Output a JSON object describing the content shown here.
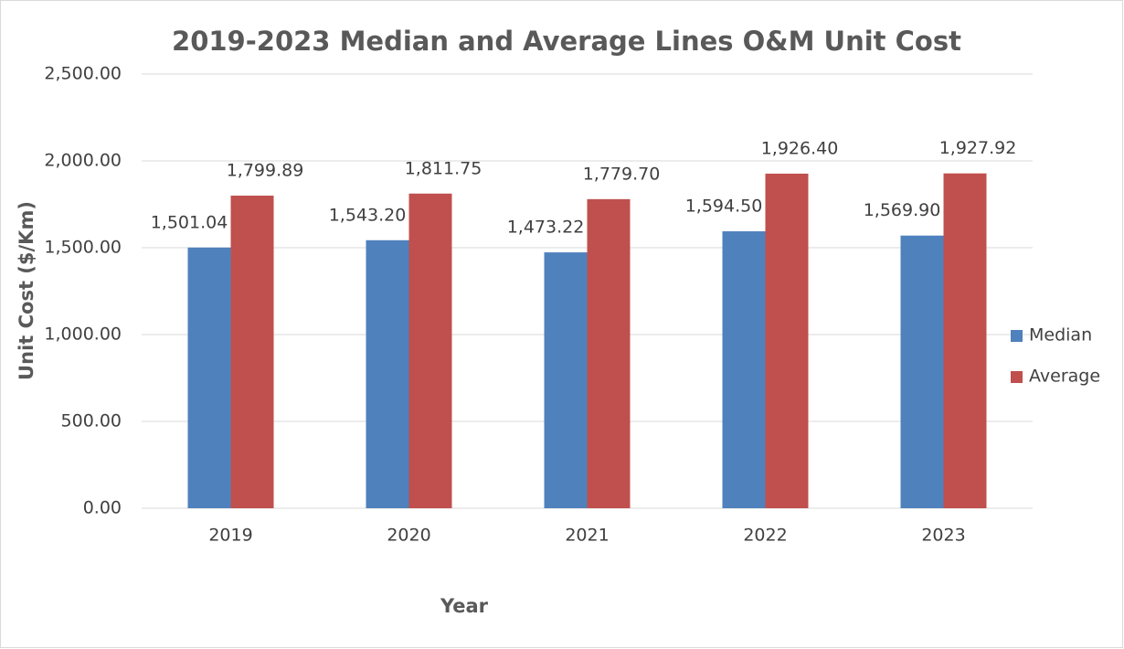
{
  "chart_data": {
    "type": "bar",
    "title": "2019-2023 Median and Average Lines O&M Unit Cost",
    "x_label": "Year",
    "y_label": "Unit Cost ($/Km)",
    "categories": [
      "2019",
      "2020",
      "2021",
      "2022",
      "2023"
    ],
    "series": [
      {
        "name": "Median",
        "color": "#4f81bd",
        "values": [
          1501.04,
          1543.2,
          1473.22,
          1594.5,
          1569.9
        ],
        "value_labels": [
          "1,501.04",
          "1,543.20",
          "1,473.22",
          "1,594.50",
          "1,569.90"
        ]
      },
      {
        "name": "Average",
        "color": "#c0504d",
        "values": [
          1799.89,
          1811.75,
          1779.7,
          1926.4,
          1927.92
        ],
        "value_labels": [
          "1,799.89",
          "1,811.75",
          "1,779.70",
          "1,926.40",
          "1,927.92"
        ]
      }
    ],
    "ylim": [
      0,
      2500
    ],
    "yticks": [
      {
        "value": 0,
        "label": "0.00"
      },
      {
        "value": 500,
        "label": "500.00"
      },
      {
        "value": 1000,
        "label": "1,000.00"
      },
      {
        "value": 1500,
        "label": "1,500.00"
      },
      {
        "value": 2000,
        "label": "2,000.00"
      },
      {
        "value": 2500,
        "label": "2,500.00"
      }
    ],
    "grid": true,
    "legend": "right"
  }
}
